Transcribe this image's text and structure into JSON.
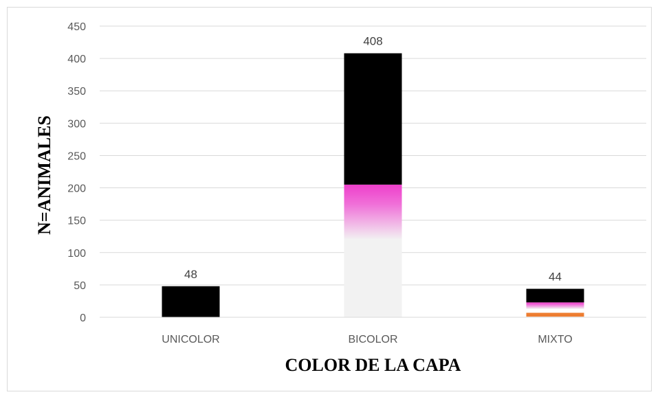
{
  "chart_data": {
    "type": "bar",
    "stacked": true,
    "categories": [
      "UNICOLOR",
      "BICOLOR",
      "MIXTO"
    ],
    "totals": [
      48,
      408,
      44
    ],
    "segments": [
      {
        "category": "UNICOLOR",
        "from": 0,
        "to": 48,
        "color": "#000000"
      },
      {
        "category": "BICOLOR",
        "from": 0,
        "to": 120,
        "color": "#f2f2f2"
      },
      {
        "category": "BICOLOR",
        "from": 120,
        "to": 205,
        "color": "#ee44cc",
        "gradient": true
      },
      {
        "category": "BICOLOR",
        "from": 205,
        "to": 408,
        "color": "#000000"
      },
      {
        "category": "MIXTO",
        "from": 0,
        "to": 1,
        "color": "#f2f2f2"
      },
      {
        "category": "MIXTO",
        "from": 1,
        "to": 7,
        "color": "#ed7d31"
      },
      {
        "category": "MIXTO",
        "from": 7,
        "to": 13,
        "color": "#ffffff"
      },
      {
        "category": "MIXTO",
        "from": 13,
        "to": 23,
        "color": "#ee44cc",
        "gradient": true
      },
      {
        "category": "MIXTO",
        "from": 23,
        "to": 44,
        "color": "#000000"
      }
    ],
    "title": "",
    "xlabel": "COLOR DE LA CAPA",
    "ylabel": "N=ANIMALES",
    "ylim": [
      0,
      450
    ],
    "yticks": [
      0,
      50,
      100,
      150,
      200,
      250,
      300,
      350,
      400,
      450
    ],
    "grid": true,
    "legend": "none"
  }
}
